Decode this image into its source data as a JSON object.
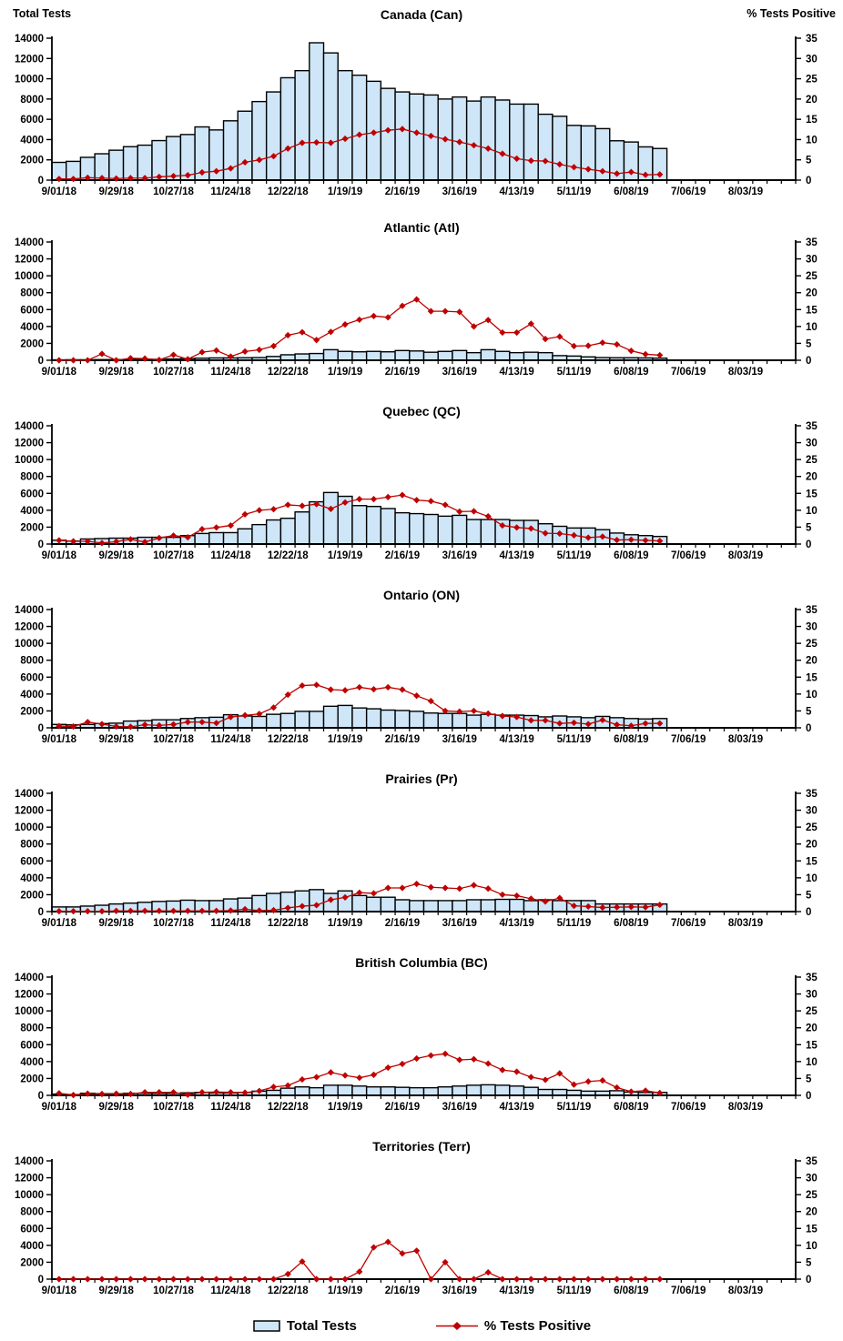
{
  "legend": {
    "bar_label": "Total Tests",
    "line_label": "% Tests Positive"
  },
  "colors": {
    "bar_fill": "#CEE6F8",
    "bar_stroke": "#000000",
    "line": "#C00000",
    "text": "#000000"
  },
  "chart_data": {
    "type": "bar+line dual-axis, 7 stacked weekly panels",
    "x_axis": {
      "tick_labels": [
        "9/01/18",
        "9/29/18",
        "10/27/18",
        "11/24/18",
        "12/22/18",
        "1/19/19",
        "2/16/19",
        "3/16/19",
        "4/13/19",
        "5/11/19",
        "6/08/19",
        "7/06/19",
        "8/03/19"
      ],
      "minor_ticks": "weekly",
      "weeks_shown": 52,
      "label_every_weeks": 4
    },
    "y_left": {
      "title": "Total Tests",
      "min": 0,
      "max": 14000,
      "step": 2000
    },
    "y_right": {
      "title": "% Tests Positive",
      "min": 0,
      "max": 35,
      "step": 5
    },
    "series_labels": {
      "bars": "Total Tests",
      "line": "% Tests Positive"
    },
    "panels": [
      {
        "title": "Canada (Can)",
        "total_tests": [
          1750,
          1850,
          2250,
          2600,
          2950,
          3300,
          3450,
          3900,
          4300,
          4500,
          5250,
          4950,
          5850,
          6800,
          7750,
          8700,
          10100,
          10800,
          13550,
          12550,
          10800,
          10350,
          9750,
          9050,
          8700,
          8500,
          8400,
          8000,
          8200,
          7800,
          8200,
          7900,
          7500,
          7500,
          6500,
          6300,
          5400,
          5350,
          5080,
          3880,
          3760,
          3280,
          3120
        ],
        "pct_positive": [
          0.3,
          0.3,
          0.6,
          0.5,
          0.4,
          0.5,
          0.5,
          0.8,
          1.0,
          1.2,
          1.9,
          2.2,
          2.9,
          4.4,
          5.0,
          5.9,
          7.8,
          9.2,
          9.3,
          9.2,
          10.2,
          11.2,
          11.7,
          12.3,
          12.6,
          11.7,
          10.9,
          10.1,
          9.4,
          8.6,
          7.8,
          6.5,
          5.3,
          4.8,
          4.7,
          3.9,
          3.2,
          2.7,
          2.2,
          1.6,
          2.0,
          1.3,
          1.4
        ]
      },
      {
        "title": "Atlantic (Atl)",
        "total_tests": [
          50,
          60,
          60,
          80,
          80,
          90,
          100,
          110,
          150,
          200,
          250,
          280,
          280,
          300,
          320,
          450,
          650,
          750,
          800,
          1250,
          1050,
          1000,
          1050,
          1000,
          1150,
          1100,
          950,
          1050,
          1150,
          900,
          1250,
          1050,
          900,
          950,
          900,
          550,
          500,
          400,
          320,
          300,
          300,
          280,
          250
        ],
        "pct_positive": [
          0,
          0,
          0,
          1.9,
          0,
          0.6,
          0.5,
          0.1,
          1.6,
          0.3,
          2.4,
          2.9,
          1.1,
          2.6,
          3.1,
          4.2,
          7.4,
          8.3,
          6.0,
          8.4,
          10.6,
          12.0,
          13.1,
          12.7,
          16.1,
          18.0,
          14.5,
          14.5,
          14.3,
          10.0,
          11.9,
          8.2,
          8.2,
          10.8,
          6.3,
          7.0,
          4.2,
          4.3,
          5.2,
          4.7,
          2.8,
          1.8,
          1.5
        ]
      },
      {
        "title": "Quebec (QC)",
        "total_tests": [
          450,
          350,
          600,
          650,
          700,
          700,
          800,
          800,
          800,
          1000,
          1250,
          1350,
          1350,
          1800,
          2300,
          2850,
          3050,
          3800,
          5000,
          6100,
          5650,
          4550,
          4450,
          4200,
          3700,
          3600,
          3500,
          3300,
          3400,
          2900,
          2900,
          2900,
          2800,
          2800,
          2400,
          2100,
          1900,
          1900,
          1700,
          1300,
          1100,
          1000,
          900
        ],
        "pct_positive": [
          1.1,
          0.8,
          0.8,
          0.3,
          0.7,
          1.4,
          0.6,
          1.8,
          2.5,
          2.0,
          4.4,
          4.9,
          5.5,
          8.8,
          10.0,
          10.3,
          11.6,
          11.3,
          11.8,
          10.4,
          12.3,
          13.3,
          13.3,
          13.9,
          14.5,
          13.0,
          12.7,
          11.6,
          9.6,
          9.7,
          8.2,
          5.5,
          4.9,
          4.6,
          3.2,
          3.1,
          2.6,
          1.9,
          2.2,
          1.2,
          1.3,
          1.1,
          0.9
        ]
      },
      {
        "title": "Ontario (ON)",
        "total_tests": [
          400,
          350,
          400,
          500,
          550,
          800,
          850,
          950,
          950,
          1100,
          1200,
          1250,
          1550,
          1400,
          1350,
          1600,
          1700,
          1950,
          1950,
          2550,
          2650,
          2350,
          2250,
          2100,
          2050,
          1950,
          1750,
          1700,
          1700,
          1500,
          1600,
          1500,
          1500,
          1450,
          1300,
          1400,
          1300,
          1200,
          1350,
          1200,
          1100,
          1050,
          1100
        ],
        "pct_positive": [
          0.5,
          0.4,
          1.7,
          1.1,
          0.4,
          0.3,
          0.9,
          0.7,
          1.0,
          1.7,
          1.7,
          1.4,
          3.2,
          3.7,
          4.1,
          6.0,
          9.8,
          12.5,
          12.7,
          11.3,
          11.1,
          12.0,
          11.4,
          12.0,
          11.3,
          9.5,
          7.9,
          5.0,
          4.8,
          5.0,
          4.2,
          3.5,
          3.2,
          2.2,
          2.2,
          1.3,
          1.5,
          1.1,
          2.3,
          0.9,
          0.6,
          1.3,
          1.3
        ]
      },
      {
        "title": "Prairies (Pr)",
        "total_tests": [
          550,
          550,
          650,
          750,
          900,
          1000,
          1100,
          1200,
          1250,
          1350,
          1300,
          1300,
          1500,
          1600,
          1900,
          2150,
          2300,
          2450,
          2600,
          2150,
          2450,
          1900,
          1700,
          1700,
          1400,
          1300,
          1300,
          1300,
          1300,
          1400,
          1400,
          1450,
          1450,
          1300,
          1400,
          1300,
          1300,
          1300,
          900,
          900,
          900,
          900,
          900
        ],
        "pct_positive": [
          0.1,
          0.1,
          0.1,
          0.1,
          0.2,
          0.2,
          0.2,
          0.2,
          0.2,
          0.2,
          0.2,
          0.2,
          0.3,
          0.7,
          0.3,
          0.4,
          1.1,
          1.6,
          1.9,
          3.5,
          4.2,
          5.6,
          5.4,
          7.0,
          7.0,
          8.2,
          7.2,
          7.0,
          6.8,
          7.8,
          6.8,
          5.0,
          4.7,
          3.8,
          3.0,
          4.0,
          1.7,
          1.5,
          1.2,
          1.3,
          1.4,
          1.3,
          2.0
        ]
      },
      {
        "title": "British Columbia (BC)",
        "total_tests": [
          150,
          100,
          250,
          200,
          200,
          250,
          250,
          250,
          250,
          300,
          350,
          300,
          300,
          350,
          500,
          600,
          850,
          1000,
          900,
          1200,
          1200,
          1100,
          1000,
          1000,
          950,
          900,
          900,
          1000,
          1100,
          1200,
          1250,
          1200,
          1100,
          950,
          700,
          700,
          600,
          500,
          500,
          550,
          400,
          350,
          350
        ],
        "pct_positive": [
          0.6,
          0.1,
          0.5,
          0.4,
          0.5,
          0.4,
          0.9,
          0.9,
          0.9,
          0.2,
          0.9,
          1.0,
          0.9,
          0.8,
          1.3,
          2.5,
          2.9,
          4.7,
          5.4,
          6.8,
          5.9,
          5.2,
          6.1,
          8.2,
          9.3,
          10.9,
          11.8,
          12.3,
          10.5,
          10.7,
          9.4,
          7.5,
          7.0,
          5.4,
          4.6,
          6.5,
          3.2,
          4.1,
          4.4,
          2.3,
          1.1,
          1.4,
          0.7
        ]
      },
      {
        "title": "Territories (Terr)",
        "total_tests": [
          0,
          0,
          0,
          0,
          0,
          0,
          0,
          0,
          0,
          0,
          0,
          0,
          0,
          0,
          0,
          0,
          0,
          0,
          0,
          0,
          0,
          0,
          0,
          0,
          0,
          0,
          0,
          0,
          0,
          0,
          0,
          0,
          0,
          0,
          0,
          0,
          0,
          0,
          0,
          0,
          0,
          0,
          0
        ],
        "pct_positive": [
          0,
          0,
          0,
          0,
          0,
          0,
          0,
          0,
          0,
          0,
          0,
          0,
          0,
          0,
          0,
          0,
          1.5,
          5.2,
          0,
          0,
          0,
          2.2,
          9.4,
          11.0,
          7.6,
          8.4,
          0,
          5.0,
          0,
          0,
          2.0,
          0,
          0,
          0,
          0,
          0,
          0,
          0,
          0,
          0,
          0,
          0,
          0
        ]
      }
    ]
  }
}
